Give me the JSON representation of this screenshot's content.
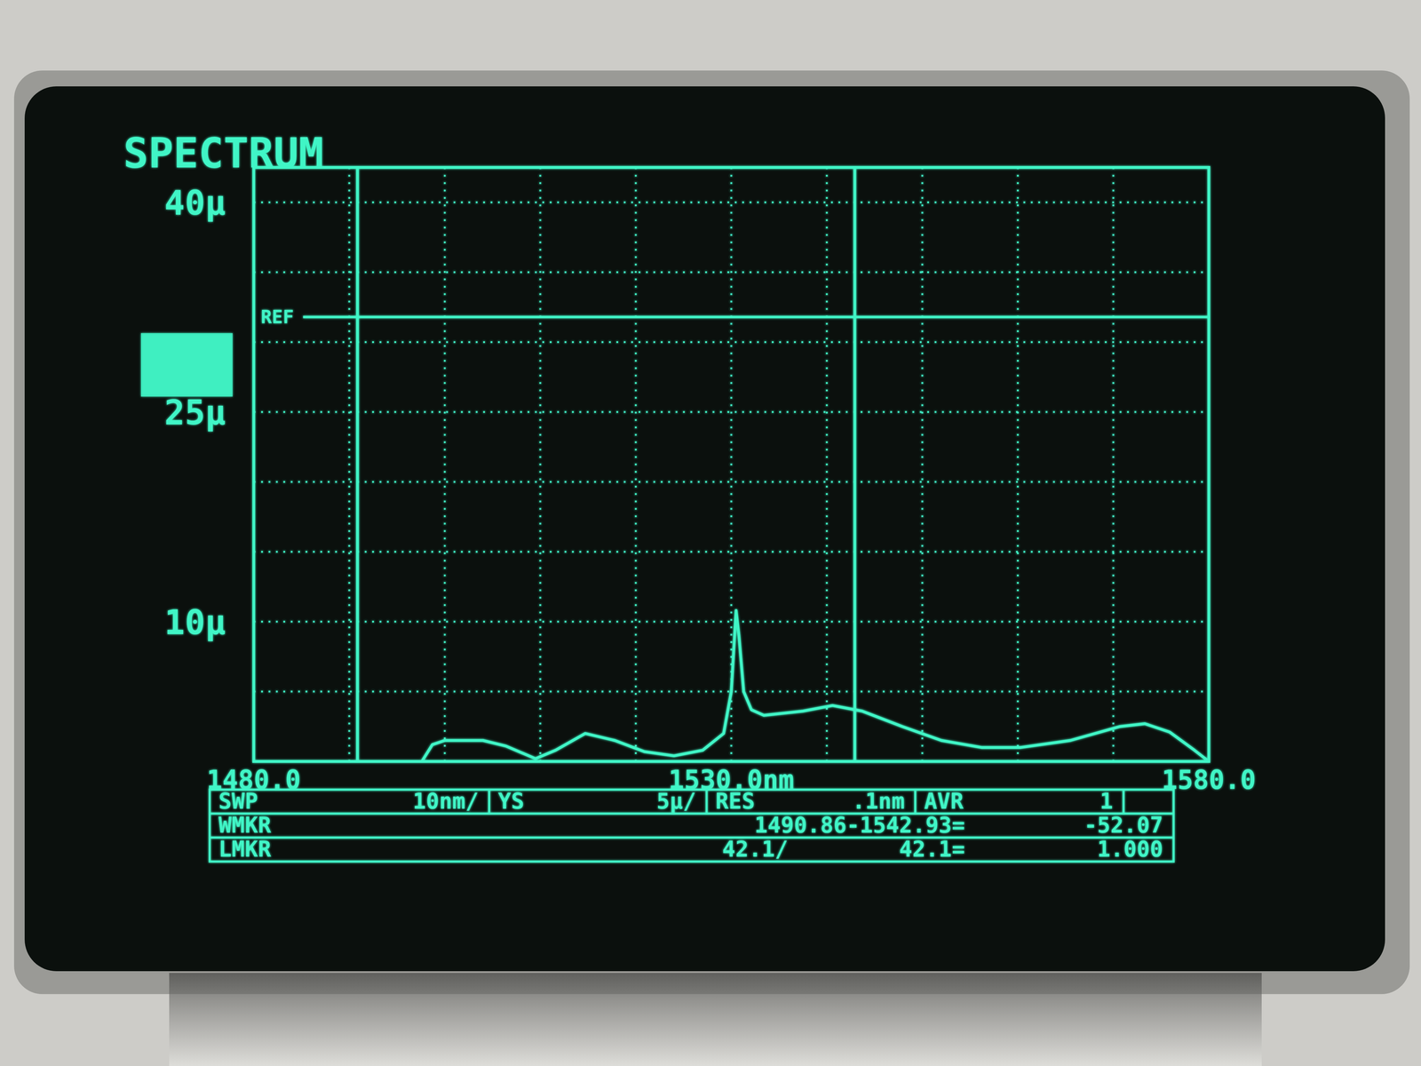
{
  "chart_data": {
    "type": "line",
    "title": "SPECTRUM",
    "color": "#3ff5c6",
    "grid": true,
    "xlim": [
      1480,
      1580
    ],
    "xticks": [
      {
        "value": 1480,
        "label": "1480.0"
      },
      {
        "value": 1490,
        "label": null
      },
      {
        "value": 1500,
        "label": null
      },
      {
        "value": 1510,
        "label": null
      },
      {
        "value": 1520,
        "label": null
      },
      {
        "value": 1530,
        "label": "1530.0nm"
      },
      {
        "value": 1540,
        "label": null
      },
      {
        "value": 1550,
        "label": null
      },
      {
        "value": 1560,
        "label": null
      },
      {
        "value": 1570,
        "label": null
      },
      {
        "value": 1580,
        "label": "1580.0"
      }
    ],
    "ylim": [
      0,
      42.5
    ],
    "yticks": [
      {
        "value": 0,
        "label": null
      },
      {
        "value": 5,
        "label": null
      },
      {
        "value": 10,
        "label": "10µ"
      },
      {
        "value": 15,
        "label": null
      },
      {
        "value": 20,
        "label": null
      },
      {
        "value": 25,
        "label": "25µ"
      },
      {
        "value": 30,
        "label": null
      },
      {
        "value": 35,
        "label": null
      },
      {
        "value": 40,
        "label": "40µ"
      }
    ],
    "x": [
      1480,
      1497.6,
      1498.7,
      1500,
      1504,
      1506.4,
      1509.5,
      1511.6,
      1514.7,
      1517.8,
      1520.9,
      1524,
      1527,
      1529.2,
      1530,
      1530.5,
      1530.8,
      1531.3,
      1532.1,
      1533.4,
      1537.5,
      1540.6,
      1543.7,
      1547.9,
      1552,
      1556.2,
      1560.3,
      1565.5,
      1570.7,
      1573.3,
      1575.9,
      1578.5,
      1580
    ],
    "values": [
      0,
      0,
      1.2,
      1.5,
      1.5,
      1.1,
      0.2,
      0.8,
      2.0,
      1.5,
      0.7,
      0.4,
      0.8,
      2.0,
      5,
      10.8,
      9,
      5,
      3.7,
      3.3,
      3.6,
      4,
      3.6,
      2.5,
      1.5,
      1.0,
      1.0,
      1.5,
      2.5,
      2.7,
      2.1,
      0.8,
      0
    ],
    "annotations": [
      {
        "text": "REF",
        "y": 31.8
      }
    ],
    "wavelength_markers": [
      1490.86,
      1542.93
    ],
    "status": {
      "sweep": [
        [
          "SWP",
          "10nm/"
        ],
        [
          "YS",
          "5µ/"
        ],
        [
          "RES",
          ".1nm"
        ],
        [
          "AVR",
          "1"
        ]
      ],
      "wmkr": [
        "WMKR",
        "1490.86-1542.93=",
        "-52.07"
      ],
      "lmkr": [
        "LMKR",
        "42.1/",
        "42.1=",
        "1.000"
      ]
    }
  }
}
